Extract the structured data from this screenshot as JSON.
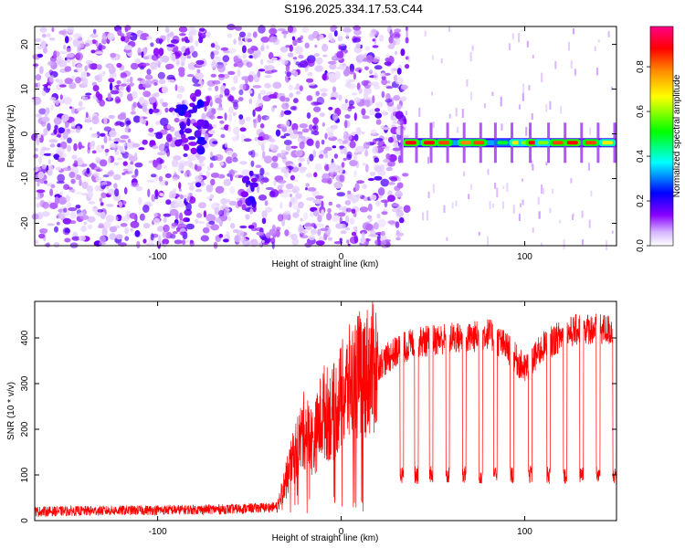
{
  "title": "S196.2025.334.17.53.C44",
  "chart_data": [
    {
      "type": "heatmap",
      "name": "spectrogram",
      "xlabel": "Height of straight line (km)",
      "ylabel": "Frequency (Hz)",
      "xlim": [
        -167,
        150
      ],
      "ylim": [
        -25,
        24
      ],
      "xticks": [
        -100,
        0,
        100
      ],
      "yticks": [
        -20,
        -10,
        0,
        10,
        20
      ],
      "colorbar": {
        "label": "Normalized spectral amplitude",
        "ticks": [
          0.0,
          0.2,
          0.4,
          0.6,
          0.8
        ],
        "range": [
          0,
          0.98
        ],
        "colors": [
          "#ffffff",
          "#8800ff",
          "#0000ff",
          "#00ffff",
          "#00ff00",
          "#ffff00",
          "#ff8800",
          "#ff0000",
          "#ff0088"
        ]
      },
      "signal_onset_km": 34,
      "signal_frequency_hz": -2,
      "bright_segments": [
        {
          "x": 38,
          "value": 0.9
        },
        {
          "x": 48,
          "value": 0.9
        },
        {
          "x": 56,
          "value": 0.85
        },
        {
          "x": 68,
          "value": 0.8
        },
        {
          "x": 75,
          "value": 0.85
        },
        {
          "x": 88,
          "value": 0.5
        },
        {
          "x": 96,
          "value": 0.7
        },
        {
          "x": 101,
          "value": 0.6
        },
        {
          "x": 105,
          "value": 0.9
        },
        {
          "x": 110,
          "value": 0.6
        },
        {
          "x": 118,
          "value": 0.85
        },
        {
          "x": 126,
          "value": 0.9
        },
        {
          "x": 136,
          "value": 0.85
        },
        {
          "x": 145,
          "value": 0.7
        }
      ]
    },
    {
      "type": "line",
      "name": "snr",
      "xlabel": "Height of straight line (km)",
      "ylabel": "SNR (10 * v/v)",
      "xlim": [
        -167,
        150
      ],
      "ylim": [
        0,
        480
      ],
      "xticks": [
        -100,
        0,
        100
      ],
      "yticks": [
        0,
        100,
        200,
        300,
        400
      ],
      "color": "#ff0000",
      "noise_floor": 20,
      "dropouts_km": [
        33,
        41,
        49,
        58,
        67,
        76,
        84,
        93,
        103,
        113,
        122,
        131,
        140,
        149
      ],
      "dropout_level": 100,
      "x": [
        -167,
        -60,
        -35,
        -30,
        -25,
        -20,
        -15,
        -10,
        -5,
        0,
        5,
        10,
        20,
        30,
        40,
        50,
        60,
        70,
        80,
        90,
        100,
        110,
        120,
        130,
        140,
        150
      ],
      "y": [
        20,
        25,
        30,
        90,
        150,
        200,
        170,
        240,
        230,
        270,
        300,
        320,
        340,
        370,
        390,
        395,
        400,
        400,
        410,
        380,
        330,
        380,
        405,
        420,
        420,
        415
      ]
    }
  ]
}
